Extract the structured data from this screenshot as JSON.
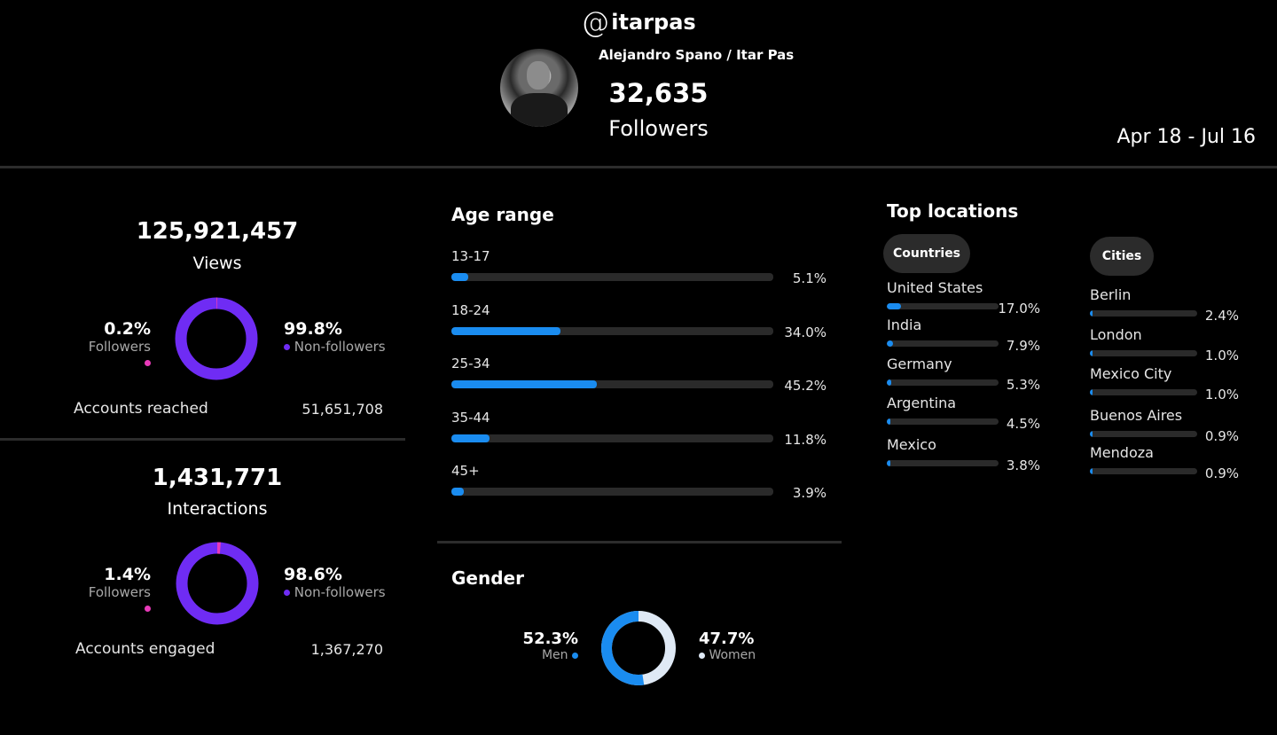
{
  "profile": {
    "at_symbol": "@",
    "handle": "itarpas",
    "full_name": "Alejandro Spano / Itar Pas",
    "followers_count": "32,635",
    "followers_label": "Followers",
    "date_range": "Apr 18 - Jul 16"
  },
  "colors": {
    "accent_purple": "#6f2cf4",
    "followers_pink": "#e83ab9",
    "bar_blue": "#1a8cf0",
    "women_white": "#dfe9f5"
  },
  "views": {
    "value": "125,921,457",
    "label": "Views",
    "followers_pct": "0.2%",
    "followers_label": "Followers",
    "followers_fraction": 0.002,
    "nonfollowers_pct": "99.8%",
    "nonfollowers_label": "Non-followers",
    "reached_label": "Accounts reached",
    "reached_value": "51,651,708"
  },
  "interactions": {
    "value": "1,431,771",
    "label": "Interactions",
    "followers_pct": "1.4%",
    "followers_label": "Followers",
    "followers_fraction": 0.014,
    "nonfollowers_pct": "98.6%",
    "nonfollowers_label": "Non-followers",
    "engaged_label": "Accounts engaged",
    "engaged_value": "1,367,270"
  },
  "age_range": {
    "title": "Age range",
    "items": [
      {
        "label": "13-17",
        "pct": "5.1%",
        "value": 5.1
      },
      {
        "label": "18-24",
        "pct": "34.0%",
        "value": 34.0
      },
      {
        "label": "25-34",
        "pct": "45.2%",
        "value": 45.2
      },
      {
        "label": "35-44",
        "pct": "11.8%",
        "value": 11.8
      },
      {
        "label": "45+",
        "pct": "3.9%",
        "value": 3.9
      }
    ]
  },
  "gender": {
    "title": "Gender",
    "men_pct": "52.3%",
    "men_label": "Men",
    "men_value": 52.3,
    "women_pct": "47.7%",
    "women_label": "Women",
    "women_value": 47.7
  },
  "top_locations": {
    "title": "Top locations",
    "countries_tab": "Countries",
    "cities_tab": "Cities",
    "countries": [
      {
        "name": "United States",
        "pct": "17.0%",
        "value": 17.0
      },
      {
        "name": "India",
        "pct": "7.9%",
        "value": 7.9
      },
      {
        "name": "Germany",
        "pct": "5.3%",
        "value": 5.3
      },
      {
        "name": "Argentina",
        "pct": "4.5%",
        "value": 4.5
      },
      {
        "name": "Mexico",
        "pct": "3.8%",
        "value": 3.8
      }
    ],
    "cities": [
      {
        "name": "Berlin",
        "pct": "2.4%",
        "value": 2.4
      },
      {
        "name": "London",
        "pct": "1.0%",
        "value": 1.0
      },
      {
        "name": "Mexico City",
        "pct": "1.0%",
        "value": 1.0
      },
      {
        "name": "Buenos Aires",
        "pct": "0.9%",
        "value": 0.9
      },
      {
        "name": "Mendoza",
        "pct": "0.9%",
        "value": 0.9
      }
    ]
  }
}
